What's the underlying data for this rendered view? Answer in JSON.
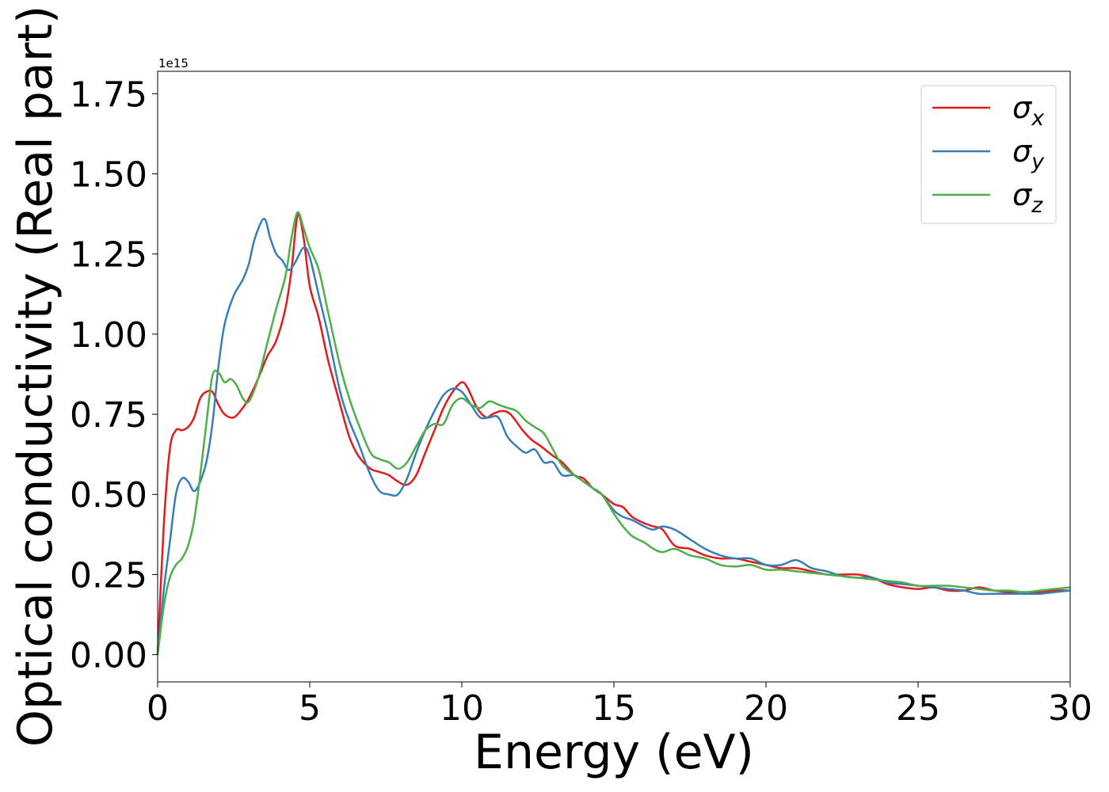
{
  "chart_data": {
    "type": "line",
    "xlabel": "Energy (eV)",
    "ylabel": "Optical conductivity (Real part)",
    "y_offset_text": "1e15",
    "xlim": [
      0,
      30
    ],
    "ylim": [
      -0.085,
      1.82
    ],
    "xticks": [
      0,
      5,
      10,
      15,
      20,
      25,
      30
    ],
    "xtick_labels": [
      "0",
      "5",
      "10",
      "15",
      "20",
      "25",
      "30"
    ],
    "yticks": [
      0,
      0.25,
      0.5,
      0.75,
      1.0,
      1.25,
      1.5,
      1.75
    ],
    "ytick_labels": [
      "0.00",
      "0.25",
      "0.50",
      "0.75",
      "1.00",
      "1.25",
      "1.50",
      "1.75"
    ],
    "grid": false,
    "legend_position": "top-right",
    "series": [
      {
        "name": "σx",
        "symbol": "σ",
        "subscript": "x",
        "color": "#e41a1c",
        "x": [
          0,
          0.2,
          0.4,
          0.6,
          0.8,
          1.0,
          1.2,
          1.4,
          1.6,
          1.8,
          2.0,
          2.2,
          2.5,
          2.8,
          3.0,
          3.3,
          3.6,
          3.9,
          4.2,
          4.4,
          4.6,
          4.8,
          5.0,
          5.3,
          5.6,
          6.0,
          6.3,
          6.6,
          7.0,
          7.3,
          7.6,
          7.9,
          8.2,
          8.5,
          8.8,
          9.1,
          9.4,
          9.7,
          10.0,
          10.2,
          10.5,
          10.8,
          11.0,
          11.3,
          11.6,
          12.0,
          12.3,
          12.6,
          13.0,
          13.3,
          13.7,
          14.0,
          14.3,
          14.6,
          15.0,
          15.3,
          15.6,
          16.0,
          16.3,
          16.6,
          17.0,
          17.5,
          18.0,
          18.5,
          19.0,
          19.5,
          20.0,
          20.5,
          21.0,
          21.5,
          22.0,
          22.5,
          23.0,
          23.5,
          24.0,
          24.5,
          25.0,
          25.5,
          26.0,
          26.5,
          27.0,
          27.5,
          28.0,
          28.5,
          29.0,
          29.5,
          30.0
        ],
        "values": [
          0.0,
          0.4,
          0.64,
          0.7,
          0.7,
          0.71,
          0.74,
          0.8,
          0.82,
          0.82,
          0.78,
          0.75,
          0.74,
          0.77,
          0.8,
          0.86,
          0.93,
          0.98,
          1.08,
          1.2,
          1.37,
          1.3,
          1.15,
          1.05,
          0.92,
          0.78,
          0.68,
          0.62,
          0.58,
          0.57,
          0.56,
          0.54,
          0.53,
          0.56,
          0.63,
          0.7,
          0.77,
          0.82,
          0.85,
          0.83,
          0.77,
          0.74,
          0.75,
          0.76,
          0.75,
          0.7,
          0.67,
          0.65,
          0.62,
          0.6,
          0.56,
          0.55,
          0.52,
          0.5,
          0.47,
          0.46,
          0.43,
          0.41,
          0.4,
          0.39,
          0.34,
          0.33,
          0.31,
          0.3,
          0.3,
          0.29,
          0.28,
          0.27,
          0.27,
          0.26,
          0.25,
          0.25,
          0.25,
          0.24,
          0.22,
          0.21,
          0.205,
          0.21,
          0.2,
          0.2,
          0.21,
          0.2,
          0.195,
          0.195,
          0.195,
          0.2,
          0.2
        ]
      },
      {
        "name": "σy",
        "symbol": "σ",
        "subscript": "y",
        "color": "#377eb8",
        "x": [
          0,
          0.2,
          0.4,
          0.6,
          0.8,
          1.0,
          1.2,
          1.4,
          1.6,
          1.8,
          2.0,
          2.2,
          2.5,
          2.8,
          3.0,
          3.2,
          3.5,
          3.7,
          3.9,
          4.1,
          4.3,
          4.5,
          4.8,
          5.0,
          5.3,
          5.6,
          6.0,
          6.3,
          6.6,
          7.0,
          7.3,
          7.6,
          7.9,
          8.2,
          8.5,
          8.8,
          9.1,
          9.4,
          9.7,
          10.0,
          10.3,
          10.6,
          10.9,
          11.2,
          11.5,
          11.8,
          12.1,
          12.4,
          12.7,
          13.0,
          13.3,
          13.7,
          14.0,
          14.3,
          14.6,
          15.0,
          15.3,
          15.6,
          16.0,
          16.3,
          16.6,
          17.0,
          17.5,
          18.0,
          18.5,
          19.0,
          19.5,
          20.0,
          20.5,
          21.0,
          21.5,
          22.0,
          22.5,
          23.0,
          23.5,
          24.0,
          24.5,
          25.0,
          25.5,
          26.0,
          26.5,
          27.0,
          27.5,
          28.0,
          28.5,
          29.0,
          29.5,
          30.0
        ],
        "values": [
          0.0,
          0.2,
          0.35,
          0.5,
          0.55,
          0.54,
          0.51,
          0.54,
          0.6,
          0.72,
          0.9,
          1.03,
          1.12,
          1.17,
          1.22,
          1.3,
          1.36,
          1.3,
          1.25,
          1.23,
          1.2,
          1.22,
          1.27,
          1.24,
          1.12,
          1.0,
          0.82,
          0.73,
          0.66,
          0.56,
          0.51,
          0.5,
          0.5,
          0.55,
          0.63,
          0.7,
          0.76,
          0.81,
          0.83,
          0.82,
          0.78,
          0.74,
          0.74,
          0.74,
          0.68,
          0.65,
          0.63,
          0.64,
          0.6,
          0.6,
          0.56,
          0.56,
          0.54,
          0.52,
          0.5,
          0.45,
          0.43,
          0.42,
          0.4,
          0.39,
          0.4,
          0.39,
          0.36,
          0.33,
          0.31,
          0.3,
          0.3,
          0.28,
          0.28,
          0.295,
          0.27,
          0.26,
          0.245,
          0.24,
          0.24,
          0.225,
          0.22,
          0.215,
          0.21,
          0.205,
          0.2,
          0.19,
          0.19,
          0.19,
          0.19,
          0.19,
          0.195,
          0.2
        ]
      },
      {
        "name": "σz",
        "symbol": "σ",
        "subscript": "z",
        "color": "#4daf4a",
        "x": [
          0,
          0.2,
          0.4,
          0.6,
          0.8,
          1.0,
          1.2,
          1.4,
          1.6,
          1.8,
          2.0,
          2.2,
          2.4,
          2.6,
          2.8,
          3.0,
          3.3,
          3.6,
          3.9,
          4.2,
          4.4,
          4.6,
          4.8,
          5.0,
          5.3,
          5.6,
          6.0,
          6.3,
          6.6,
          7.0,
          7.3,
          7.6,
          7.9,
          8.2,
          8.5,
          8.8,
          9.1,
          9.4,
          9.7,
          10.0,
          10.3,
          10.6,
          10.9,
          11.2,
          11.5,
          11.8,
          12.1,
          12.4,
          12.7,
          13.0,
          13.3,
          13.7,
          14.0,
          14.3,
          14.6,
          15.0,
          15.3,
          15.6,
          16.0,
          16.3,
          16.6,
          17.0,
          17.5,
          18.0,
          18.5,
          19.0,
          19.5,
          20.0,
          20.5,
          21.0,
          21.5,
          22.0,
          22.5,
          23.0,
          23.5,
          24.0,
          24.5,
          25.0,
          25.5,
          26.0,
          26.5,
          27.0,
          27.5,
          28.0,
          28.5,
          29.0,
          29.5,
          30.0
        ],
        "values": [
          0.0,
          0.15,
          0.24,
          0.28,
          0.3,
          0.34,
          0.42,
          0.56,
          0.72,
          0.87,
          0.88,
          0.85,
          0.86,
          0.84,
          0.8,
          0.79,
          0.86,
          0.97,
          1.08,
          1.18,
          1.3,
          1.38,
          1.33,
          1.27,
          1.2,
          1.07,
          0.9,
          0.8,
          0.72,
          0.63,
          0.61,
          0.6,
          0.58,
          0.6,
          0.65,
          0.7,
          0.72,
          0.72,
          0.78,
          0.8,
          0.78,
          0.77,
          0.79,
          0.78,
          0.77,
          0.76,
          0.73,
          0.71,
          0.69,
          0.64,
          0.59,
          0.56,
          0.54,
          0.52,
          0.5,
          0.44,
          0.4,
          0.37,
          0.35,
          0.33,
          0.32,
          0.33,
          0.31,
          0.3,
          0.28,
          0.275,
          0.28,
          0.265,
          0.265,
          0.26,
          0.255,
          0.25,
          0.245,
          0.24,
          0.235,
          0.23,
          0.225,
          0.215,
          0.215,
          0.215,
          0.21,
          0.205,
          0.2,
          0.2,
          0.195,
          0.2,
          0.205,
          0.21
        ]
      }
    ]
  }
}
